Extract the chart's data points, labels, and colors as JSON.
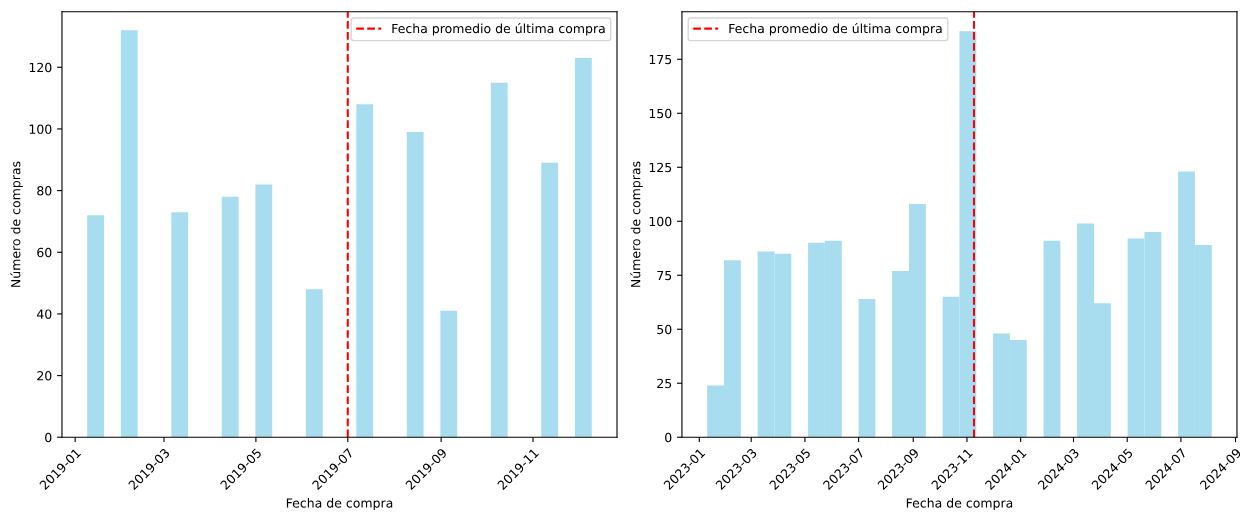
{
  "chart_data": [
    {
      "type": "histogram",
      "xlabel": "Fecha de compra",
      "ylabel": "Número de compras",
      "color": "#a8dcef",
      "bins": [
        "2019-01-09T00:00",
        "2019-01-20T04:00",
        "2019-01-31T08:00",
        "2019-02-11T12:00",
        "2019-02-22T16:00",
        "2019-03-05T20:00",
        "2019-03-17T00:00",
        "2019-03-28T04:00",
        "2019-04-08T08:00",
        "2019-04-19T12:00",
        "2019-04-30T16:00",
        "2019-05-11T20:00",
        "2019-05-23T00:00",
        "2019-06-03T04:00",
        "2019-06-14T08:00",
        "2019-06-25T12:00",
        "2019-07-06T16:00",
        "2019-07-17T20:00",
        "2019-07-29T00:00",
        "2019-08-09T04:00",
        "2019-08-20T08:00",
        "2019-08-31T12:00",
        "2019-09-11T16:00",
        "2019-09-22T20:00",
        "2019-10-04T00:00",
        "2019-10-15T04:00",
        "2019-10-26T08:00",
        "2019-11-06T12:00",
        "2019-11-17T16:00",
        "2019-11-28T20:00",
        "2019-12-10T00:00"
      ],
      "values": [
        72,
        0,
        132,
        0,
        0,
        73,
        0,
        0,
        78,
        0,
        82,
        0,
        0,
        48,
        0,
        0,
        108,
        0,
        0,
        99,
        0,
        41,
        0,
        0,
        115,
        0,
        0,
        89,
        0,
        123
      ],
      "xlim": [
        "2018-12-23T06:00",
        "2019-12-26T18:00"
      ],
      "xticks": [
        {
          "value": "2019-01-01",
          "label": "2019-01"
        },
        {
          "value": "2019-03-01",
          "label": "2019-03"
        },
        {
          "value": "2019-05-01",
          "label": "2019-05"
        },
        {
          "value": "2019-07-01",
          "label": "2019-07"
        },
        {
          "value": "2019-09-01",
          "label": "2019-09"
        },
        {
          "value": "2019-11-01",
          "label": "2019-11"
        }
      ],
      "ylim": [
        0,
        138
      ],
      "yticks": [
        0,
        20,
        40,
        60,
        80,
        100,
        120
      ],
      "ref_lines": [
        {
          "axis": "x",
          "value": "2019-07-01",
          "label": "Fecha promedio de última compra",
          "color": "#ff0000",
          "line_style": "dashed"
        }
      ],
      "legend": "top right",
      "grid": false
    },
    {
      "type": "histogram",
      "xlabel": "Fecha de compra",
      "ylabel": "Número de compras",
      "color": "#a8dcef",
      "bins": [
        "2023-01-10T00:00",
        "2023-01-29T02:24",
        "2023-02-17T04:48",
        "2023-03-08T07:12",
        "2023-03-27T09:36",
        "2023-04-15T12:00",
        "2023-05-04T14:24",
        "2023-05-23T16:48",
        "2023-06-11T19:12",
        "2023-06-30T21:36",
        "2023-07-20T00:00",
        "2023-08-08T02:24",
        "2023-08-27T04:48",
        "2023-09-15T07:12",
        "2023-10-04T09:36",
        "2023-10-23T12:00",
        "2023-11-11T14:24",
        "2023-11-30T16:48",
        "2023-12-19T19:12",
        "2024-01-07T21:36",
        "2024-01-27T00:00",
        "2024-02-15T02:24",
        "2024-03-05T04:48",
        "2024-03-24T07:12",
        "2024-04-12T09:36",
        "2024-05-01T12:00",
        "2024-05-20T14:24",
        "2024-06-08T16:48",
        "2024-06-27T19:12",
        "2024-07-16T21:36",
        "2024-08-05T00:00"
      ],
      "values": [
        24,
        82,
        0,
        86,
        85,
        0,
        90,
        91,
        0,
        64,
        0,
        77,
        108,
        0,
        65,
        188,
        0,
        48,
        45,
        0,
        91,
        0,
        99,
        62,
        0,
        92,
        95,
        0,
        123,
        89
      ],
      "xlim": [
        "2022-12-12T08:00",
        "2024-09-02T16:00"
      ],
      "xticks": [
        {
          "value": "2023-01-01",
          "label": "2023-01"
        },
        {
          "value": "2023-03-01",
          "label": "2023-03"
        },
        {
          "value": "2023-05-01",
          "label": "2023-05"
        },
        {
          "value": "2023-07-01",
          "label": "2023-07"
        },
        {
          "value": "2023-09-01",
          "label": "2023-09"
        },
        {
          "value": "2023-11-01",
          "label": "2023-11"
        },
        {
          "value": "2024-01-01",
          "label": "2024-01"
        },
        {
          "value": "2024-03-01",
          "label": "2024-03"
        },
        {
          "value": "2024-05-01",
          "label": "2024-05"
        },
        {
          "value": "2024-07-01",
          "label": "2024-07"
        },
        {
          "value": "2024-09-01",
          "label": "2024-09"
        }
      ],
      "ylim": [
        0,
        197
      ],
      "yticks": [
        0,
        25,
        50,
        75,
        100,
        125,
        150,
        175
      ],
      "ref_lines": [
        {
          "axis": "x",
          "value": "2023-11-09",
          "label": "Fecha promedio de última compra",
          "color": "#ff0000",
          "line_style": "dashed"
        }
      ],
      "legend": "top left",
      "grid": false
    }
  ]
}
